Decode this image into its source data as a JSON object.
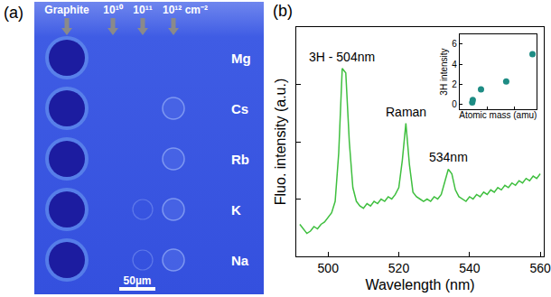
{
  "panel_a": {
    "letter": "(a)",
    "columns": [
      "Graphite",
      "10¹⁰",
      "10¹¹",
      "10¹² cm⁻²"
    ],
    "rows": [
      "Mg",
      "Cs",
      "Rb",
      "K",
      "Na"
    ],
    "scale_bar": "50µm"
  },
  "panel_b": {
    "letter": "(b)"
  },
  "chart_data": [
    {
      "type": "line",
      "x_label": "Wavelength (nm)",
      "y_label": "Fluo. intensity (a.u.)",
      "x": [
        492,
        493,
        494,
        495,
        496,
        497,
        498,
        499,
        500,
        501,
        502,
        503,
        504,
        505,
        506,
        507,
        508,
        509,
        510,
        511,
        512,
        513,
        514,
        515,
        516,
        517,
        518,
        519,
        520,
        521,
        522,
        523,
        524,
        525,
        526,
        527,
        528,
        529,
        530,
        531,
        532,
        533,
        534,
        535,
        536,
        537,
        538,
        539,
        540,
        541,
        542,
        543,
        544,
        545,
        546,
        547,
        548,
        549,
        550,
        551,
        552,
        553,
        554,
        555,
        556,
        557,
        558,
        559,
        560
      ],
      "values": [
        0.14,
        0.12,
        0.1,
        0.11,
        0.13,
        0.12,
        0.14,
        0.15,
        0.17,
        0.19,
        0.24,
        0.45,
        0.82,
        0.8,
        0.5,
        0.3,
        0.24,
        0.22,
        0.21,
        0.23,
        0.22,
        0.24,
        0.23,
        0.25,
        0.24,
        0.26,
        0.25,
        0.27,
        0.3,
        0.42,
        0.58,
        0.4,
        0.28,
        0.26,
        0.25,
        0.24,
        0.25,
        0.24,
        0.26,
        0.25,
        0.27,
        0.32,
        0.38,
        0.36,
        0.29,
        0.26,
        0.25,
        0.24,
        0.26,
        0.25,
        0.27,
        0.26,
        0.28,
        0.27,
        0.29,
        0.28,
        0.3,
        0.29,
        0.31,
        0.3,
        0.32,
        0.31,
        0.33,
        0.32,
        0.34,
        0.33,
        0.35,
        0.34,
        0.36
      ],
      "color": "#3fbf3f",
      "xlim": [
        491,
        561
      ],
      "xticks": [
        500,
        520,
        540,
        560
      ],
      "ylim": [
        0,
        1
      ],
      "yticks": [
        0.25,
        0.5,
        0.75
      ],
      "tick_labels": "x",
      "grid": false,
      "annotations": [
        {
          "text": "3H - 504nm",
          "x": 504,
          "y": 0.82
        },
        {
          "text": "Raman",
          "x": 522,
          "y": 0.58
        },
        {
          "text": "534nm",
          "x": 534,
          "y": 0.38
        }
      ]
    },
    {
      "type": "scatter",
      "x_label": "Atomic mass (amu)",
      "y_label": "3H intensity",
      "x": [
        23,
        24,
        39,
        85,
        133
      ],
      "values": [
        0.2,
        0.45,
        1.5,
        2.3,
        5.0
      ],
      "color": "#1e8c84",
      "marker": "circle",
      "xlim": [
        0,
        140
      ],
      "xticks": [
        0,
        50,
        100
      ],
      "ylim": [
        -0.5,
        7
      ],
      "yticks": [
        0,
        2,
        4,
        6
      ],
      "tick_labels": "y",
      "grid": false
    }
  ]
}
